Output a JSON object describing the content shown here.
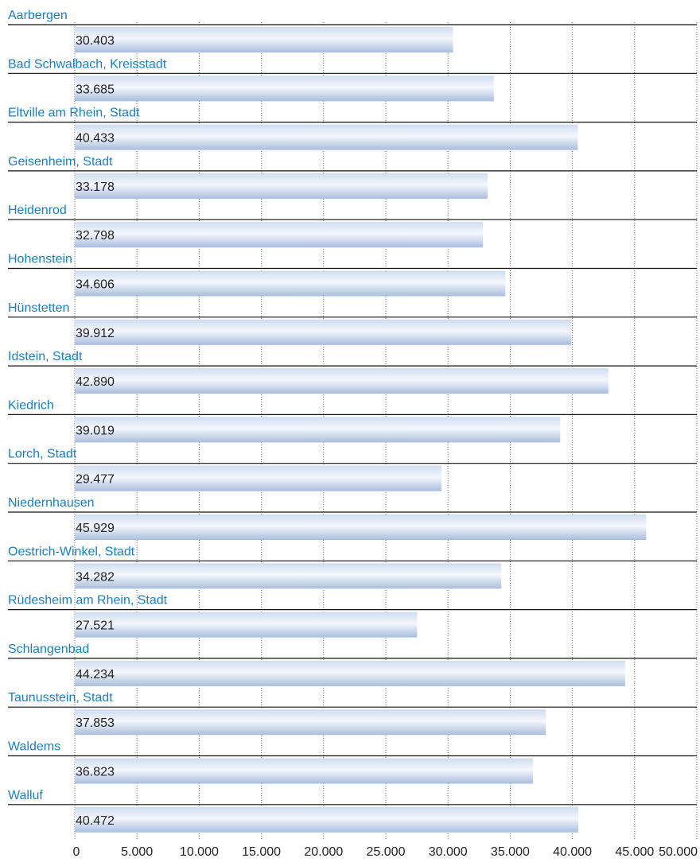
{
  "chart_data": {
    "type": "bar",
    "orientation": "horizontal",
    "categories": [
      "Aarbergen",
      "Bad Schwalbach, Kreisstadt",
      "Eltville am Rhein, Stadt",
      "Geisenheim, Stadt",
      "Heidenrod",
      "Hohenstein",
      "Hünstetten",
      "Idstein, Stadt",
      "Kiedrich",
      "Lorch, Stadt",
      "Niedernhausen",
      "Oestrich-Winkel, Stadt",
      "Rüdesheim am Rhein, Stadt",
      "Schlangenbad",
      "Taunusstein, Stadt",
      "Waldems",
      "Walluf"
    ],
    "values": [
      30403,
      33685,
      40433,
      33178,
      32798,
      34606,
      39912,
      42890,
      39019,
      29477,
      45929,
      34282,
      27521,
      44234,
      37853,
      36823,
      40472
    ],
    "value_labels": [
      "30.403",
      "33.685",
      "40.433",
      "33.178",
      "32.798",
      "34.606",
      "39.912",
      "42.890",
      "39.019",
      "29.477",
      "45.929",
      "34.282",
      "27.521",
      "44.234",
      "37.853",
      "36.823",
      "40.472"
    ],
    "xlim": [
      0,
      50000
    ],
    "x_ticks": [
      0,
      5000,
      10000,
      15000,
      20000,
      25000,
      30000,
      35000,
      40000,
      45000,
      50000
    ],
    "x_tick_labels": [
      "0",
      "5.000",
      "10.000",
      "15.000",
      "20.000",
      "25.000",
      "30.000",
      "35.000",
      "40.000",
      "45.000",
      "50.000"
    ],
    "grid": true,
    "colors": {
      "category_label": "#1a7fc1",
      "bar_light": "#eef3fa",
      "bar_mid": "#cfdcef",
      "bar_dark": "#a9bddc",
      "grid": "#666666",
      "separator": "#111111",
      "text": "#222222"
    }
  }
}
